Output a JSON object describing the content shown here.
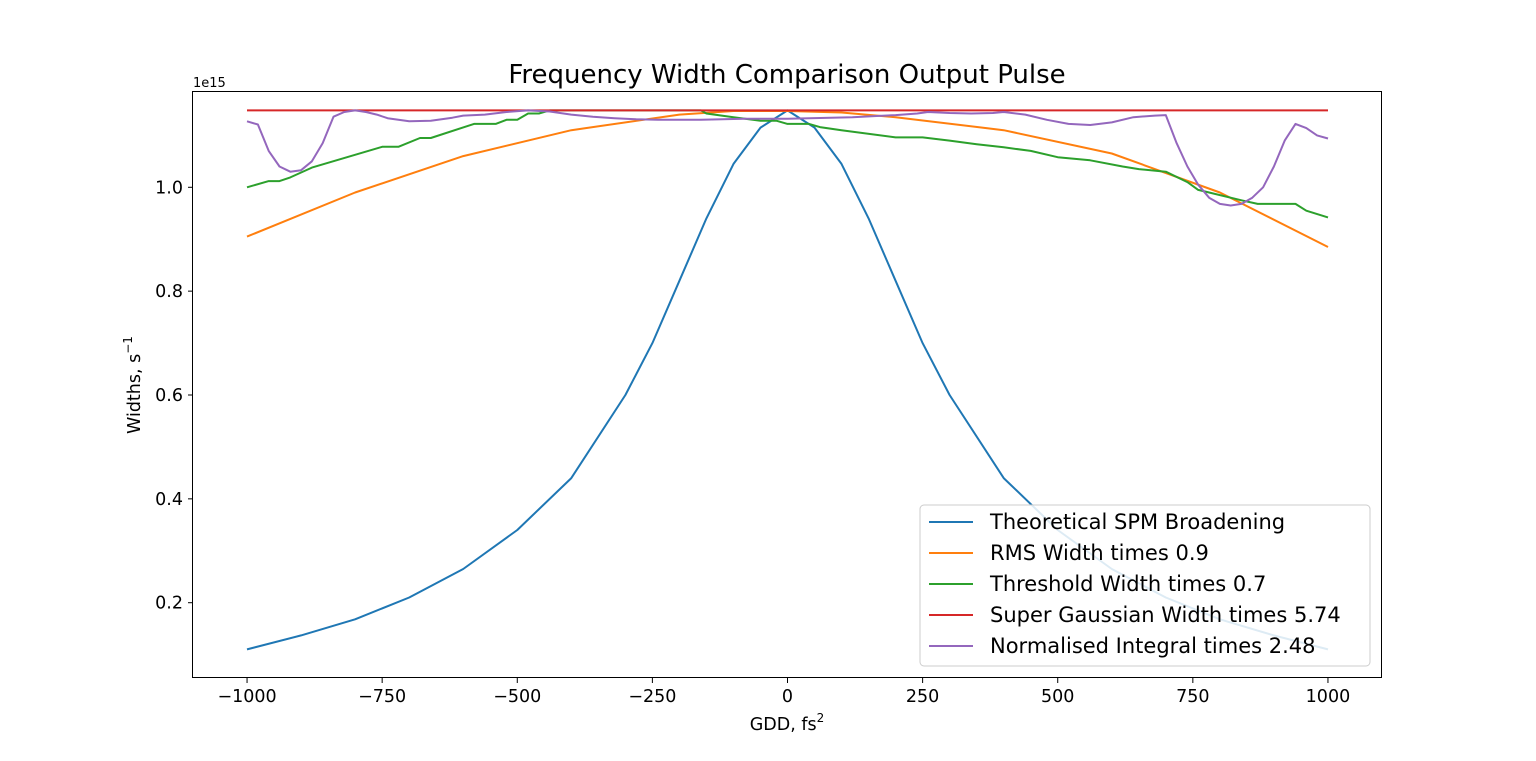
{
  "chart_data": {
    "type": "line",
    "title": "Frequency Width Comparison Output Pulse",
    "xlabel": "GDD, fs",
    "xlabel_sup": "2",
    "ylabel": "Widths, s",
    "ylabel_sup": "−1",
    "y_offset_label": "1e15",
    "xlim": [
      -1100,
      1100
    ],
    "ylim": [
      0.055,
      1.1835
    ],
    "x_ticks": [
      -1000,
      -750,
      -500,
      -250,
      0,
      250,
      500,
      750,
      1000
    ],
    "x_tick_labels": [
      "−1000",
      "−750",
      "−500",
      "−250",
      "0",
      "250",
      "500",
      "750",
      "1000"
    ],
    "y_ticks": [
      0.2,
      0.4,
      0.6,
      0.8,
      1.0
    ],
    "y_tick_labels": [
      "0.2",
      "0.4",
      "0.6",
      "0.8",
      "1.0"
    ],
    "grid": false,
    "legend_position": "lower-right",
    "series": [
      {
        "name": "Theoretical SPM Broadening",
        "color": "#1f77b4",
        "x": [
          -1000,
          -900,
          -800,
          -700,
          -600,
          -500,
          -400,
          -300,
          -250,
          -200,
          -150,
          -100,
          -50,
          0,
          50,
          100,
          150,
          200,
          250,
          300,
          400,
          500,
          600,
          700,
          800,
          900,
          1000
        ],
        "y": [
          0.11,
          0.137,
          0.168,
          0.21,
          0.265,
          0.34,
          0.44,
          0.6,
          0.7,
          0.82,
          0.94,
          1.045,
          1.115,
          1.148,
          1.115,
          1.045,
          0.94,
          0.82,
          0.7,
          0.6,
          0.44,
          0.34,
          0.265,
          0.21,
          0.168,
          0.137,
          0.11
        ]
      },
      {
        "name": "RMS Width times 0.9",
        "color": "#ff7f0e",
        "x": [
          -1000,
          -800,
          -600,
          -400,
          -200,
          -100,
          0,
          100,
          200,
          400,
          600,
          800,
          1000
        ],
        "y": [
          0.905,
          0.99,
          1.06,
          1.11,
          1.14,
          1.147,
          1.147,
          1.144,
          1.135,
          1.11,
          1.065,
          0.99,
          0.885
        ]
      },
      {
        "name": "Threshold Width times 0.7",
        "color": "#2ca02c",
        "x": [
          -1000,
          -960,
          -940,
          -920,
          -880,
          -750,
          -720,
          -680,
          -660,
          -580,
          -540,
          -520,
          -500,
          -480,
          -460,
          -440,
          -420,
          -160,
          -150,
          -100,
          -50,
          -20,
          0,
          40,
          60,
          100,
          200,
          250,
          300,
          350,
          400,
          450,
          500,
          560,
          620,
          650,
          700,
          740,
          760,
          780,
          840,
          870,
          880,
          900,
          920,
          940,
          960,
          1000
        ],
        "y": [
          1.0,
          1.012,
          1.012,
          1.019,
          1.038,
          1.078,
          1.078,
          1.095,
          1.095,
          1.122,
          1.122,
          1.13,
          1.13,
          1.142,
          1.142,
          1.148,
          1.148,
          1.148,
          1.142,
          1.135,
          1.128,
          1.128,
          1.122,
          1.122,
          1.116,
          1.11,
          1.096,
          1.096,
          1.09,
          1.083,
          1.077,
          1.07,
          1.058,
          1.052,
          1.04,
          1.035,
          1.03,
          1.01,
          0.995,
          0.99,
          0.975,
          0.968,
          0.968,
          0.968,
          0.968,
          0.968,
          0.955,
          0.942
        ]
      },
      {
        "name": "Super Gaussian Width times 5.74",
        "color": "#d62728",
        "x": [
          -1000,
          1000
        ],
        "y": [
          1.148,
          1.148
        ]
      },
      {
        "name": "Normalised Integral times 2.48",
        "color": "#9467bd",
        "x": [
          -1000,
          -980,
          -960,
          -940,
          -920,
          -900,
          -880,
          -860,
          -840,
          -820,
          -800,
          -780,
          -760,
          -740,
          -700,
          -660,
          -620,
          -600,
          -560,
          -520,
          -480,
          -440,
          -400,
          -360,
          -320,
          -280,
          -240,
          -200,
          -160,
          -120,
          -80,
          -40,
          0,
          40,
          80,
          120,
          160,
          200,
          240,
          260,
          300,
          340,
          380,
          400,
          440,
          480,
          520,
          560,
          600,
          640,
          680,
          700,
          720,
          740,
          760,
          780,
          800,
          820,
          840,
          860,
          880,
          900,
          920,
          940,
          960,
          980,
          1000
        ],
        "y": [
          1.127,
          1.121,
          1.07,
          1.04,
          1.03,
          1.033,
          1.05,
          1.085,
          1.136,
          1.145,
          1.148,
          1.145,
          1.14,
          1.133,
          1.127,
          1.128,
          1.134,
          1.138,
          1.14,
          1.145,
          1.148,
          1.146,
          1.14,
          1.136,
          1.133,
          1.131,
          1.13,
          1.13,
          1.13,
          1.131,
          1.132,
          1.132,
          1.132,
          1.133,
          1.134,
          1.135,
          1.137,
          1.139,
          1.142,
          1.145,
          1.143,
          1.142,
          1.143,
          1.145,
          1.14,
          1.13,
          1.122,
          1.12,
          1.125,
          1.135,
          1.138,
          1.139,
          1.085,
          1.04,
          1.005,
          0.98,
          0.968,
          0.965,
          0.968,
          0.98,
          1.0,
          1.04,
          1.09,
          1.122,
          1.114,
          1.1,
          1.094
        ]
      }
    ]
  }
}
